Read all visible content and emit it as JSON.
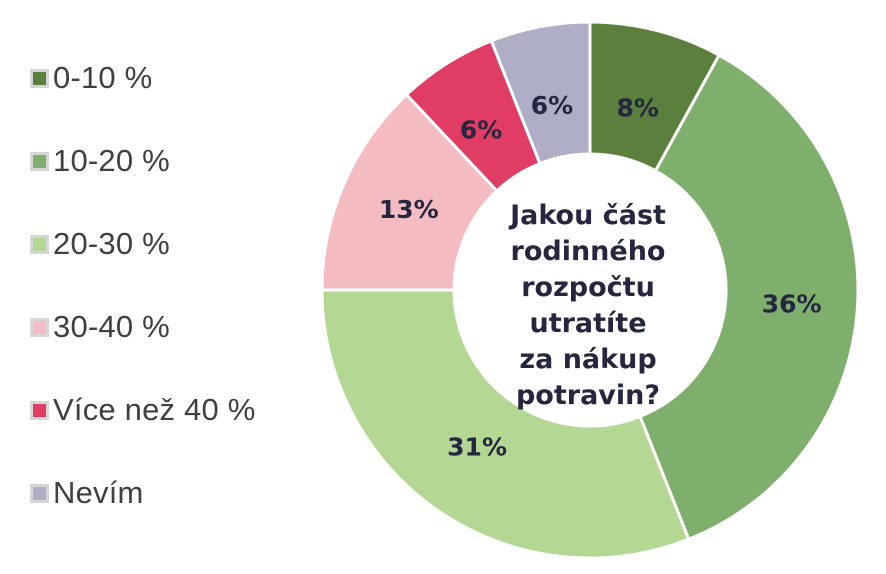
{
  "chart_data": {
    "type": "pie",
    "variant": "donut",
    "title": "Jakou část rodinného rozpočtu utratíte za nákup potravin?",
    "title_lines": [
      "Jakou část",
      "rodinného",
      "rozpočtu utratíte",
      "za nákup",
      "potravin?"
    ],
    "legend_position": "left",
    "slices": [
      {
        "label": "0-10 %",
        "value": 8,
        "display": "8%",
        "color": "#5b803e"
      },
      {
        "label": "10-20 %",
        "value": 36,
        "display": "36%",
        "color": "#7faf6c"
      },
      {
        "label": "20-30 %",
        "value": 31,
        "display": "31%",
        "color": "#b4d894"
      },
      {
        "label": "30-40 %",
        "value": 13,
        "display": "13%",
        "color": "#f4bcc2"
      },
      {
        "label": "Více než 40 %",
        "value": 6,
        "display": "6%",
        "color": "#e03c64"
      },
      {
        "label": "Nevím",
        "value": 6,
        "display": "6%",
        "color": "#aeaec6"
      }
    ]
  }
}
